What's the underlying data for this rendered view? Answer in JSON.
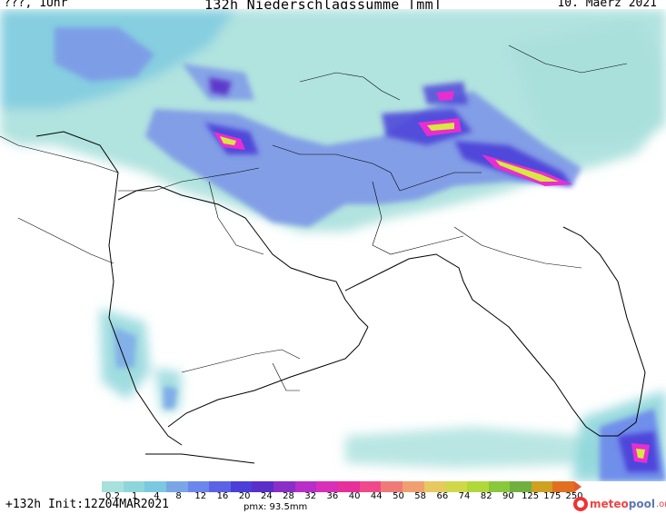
{
  "header": {
    "left": "???, 1Uhr",
    "title": "132h Niederschlagssumme [mm]",
    "date": "10. Maerz 2021"
  },
  "legend": {
    "ticks": [
      "0.2",
      "1",
      "4",
      "8",
      "12",
      "16",
      "20",
      "24",
      "28",
      "32",
      "36",
      "40",
      "44",
      "50",
      "58",
      "66",
      "74",
      "82",
      "90",
      "125",
      "175",
      "250"
    ],
    "colors": [
      "#a8e0dc",
      "#8ed6da",
      "#7cc8e0",
      "#7aa6e8",
      "#6b86ec",
      "#5a62e6",
      "#4a3fd8",
      "#5a2ec8",
      "#8a2ec8",
      "#b82ec8",
      "#d82eb8",
      "#e82e9a",
      "#f0488a",
      "#f07a7a",
      "#f0a070",
      "#e8c860",
      "#d0d84a",
      "#b0d83a",
      "#88c83a",
      "#70b040",
      "#d0a020",
      "#e07020"
    ]
  },
  "footer": {
    "run": "+132h Init:12Z04MAR2021",
    "pmx": "pmx: 93.5mm",
    "brand_a": "meteo",
    "brand_b": "pool",
    "brand_c": ".org"
  },
  "map": {
    "land_color": "#ffffff",
    "border_color": "#000000",
    "precip_low": "#a8e0dc",
    "precip_mid": "#7a92e8",
    "precip_high": "#4a3fd8",
    "precip_peak": "#e82ed0",
    "precip_max": "#d8e840"
  }
}
